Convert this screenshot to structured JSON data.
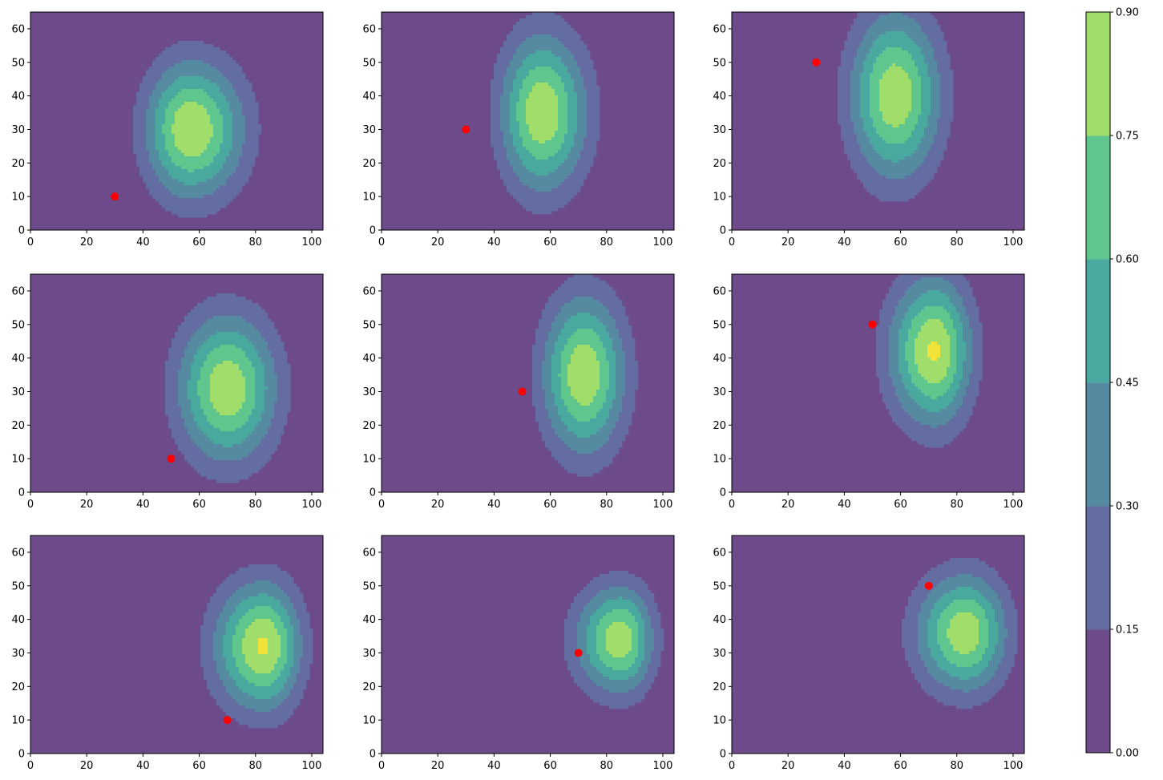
{
  "chart_data": {
    "type": "heatmap",
    "subtype": "filled-contour small multiples",
    "layout": {
      "rows": 3,
      "cols": 3
    },
    "xlim": [
      0,
      104
    ],
    "ylim": [
      0,
      65
    ],
    "x_ticks": [
      0,
      20,
      40,
      60,
      80,
      100
    ],
    "y_ticks": [
      0,
      10,
      20,
      30,
      40,
      50,
      60
    ],
    "x_tick_labels": [
      "0",
      "20",
      "40",
      "60",
      "80",
      "100"
    ],
    "y_tick_labels": [
      "0",
      "10",
      "20",
      "30",
      "40",
      "50",
      "60"
    ],
    "colorbar": {
      "levels": [
        0.0,
        0.15,
        0.3,
        0.45,
        0.6,
        0.75,
        0.9
      ],
      "tick_labels": [
        "0.00",
        "0.15",
        "0.30",
        "0.45",
        "0.60",
        "0.75",
        "0.90"
      ],
      "colors": [
        "#6d4a8a",
        "#646da1",
        "#568aa1",
        "#4aa99f",
        "#5fc78e",
        "#a0dd6a"
      ],
      "peak_color": "#f2e33b"
    },
    "marker_color": "#ff0000",
    "panels": [
      {
        "marker": [
          30,
          10
        ],
        "peak_center": [
          57,
          30
        ],
        "spread_x": [
          11,
          13
        ],
        "spread_y": [
          14,
          14
        ],
        "peak": 0.89
      },
      {
        "marker": [
          30,
          30
        ],
        "peak_center": [
          57,
          35
        ],
        "spread_x": [
          10,
          11
        ],
        "spread_y": [
          16,
          16
        ],
        "peak": 0.88
      },
      {
        "marker": [
          30,
          50
        ],
        "peak_center": [
          58,
          40
        ],
        "spread_x": [
          11,
          11
        ],
        "spread_y": [
          17,
          17
        ],
        "peak": 0.87
      },
      {
        "marker": [
          50,
          10
        ],
        "peak_center": [
          70,
          31
        ],
        "spread_x": [
          12,
          12
        ],
        "spread_y": [
          15,
          15
        ],
        "peak": 0.87
      },
      {
        "marker": [
          50,
          30
        ],
        "peak_center": [
          72,
          35
        ],
        "spread_x": [
          10,
          10
        ],
        "spread_y": [
          16,
          16
        ],
        "peak": 0.88
      },
      {
        "marker": [
          50,
          50
        ],
        "peak_center": [
          72,
          42
        ],
        "spread_x": [
          11,
          9
        ],
        "spread_y": [
          15,
          15
        ],
        "peak": 0.92
      },
      {
        "marker": [
          70,
          10
        ],
        "peak_center": [
          83,
          32
        ],
        "spread_x": [
          12,
          9
        ],
        "spread_y": [
          13,
          13
        ],
        "peak": 0.92
      },
      {
        "marker": [
          70,
          30
        ],
        "peak_center": [
          85,
          34
        ],
        "spread_x": [
          11,
          8
        ],
        "spread_y": [
          11,
          11
        ],
        "peak": 0.85
      },
      {
        "marker": [
          70,
          50
        ],
        "peak_center": [
          83,
          36
        ],
        "spread_x": [
          12,
          10
        ],
        "spread_y": [
          12,
          12
        ],
        "peak": 0.86
      }
    ]
  }
}
